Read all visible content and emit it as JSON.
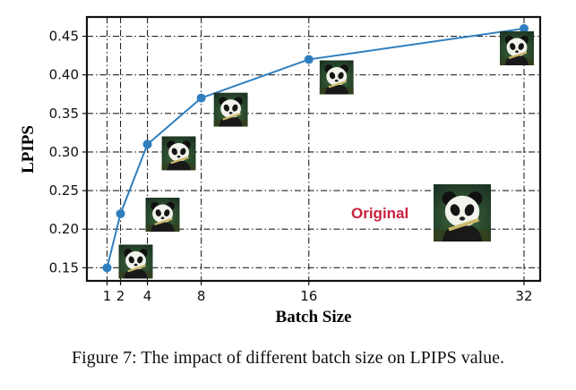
{
  "chart_data": {
    "type": "line",
    "xlabel": "Batch Size",
    "ylabel": "LPIPS",
    "x": [
      1,
      2,
      4,
      8,
      16,
      32
    ],
    "series": [
      {
        "values": [
          0.15,
          0.22,
          0.31,
          0.37,
          0.42,
          0.46
        ]
      }
    ],
    "x_ticks": [
      "1",
      "2",
      "4",
      "8",
      "16",
      "32"
    ],
    "y_ticks": [
      "0.15",
      "0.20",
      "0.25",
      "0.30",
      "0.35",
      "0.40",
      "0.45"
    ],
    "xlim": [
      -0.5,
      33.2
    ],
    "ylim": [
      0.133,
      0.475
    ],
    "grid": true,
    "grid_style": "dash-dot",
    "line_color": "#2f7fbf",
    "annotation": {
      "text": "Original",
      "color": "#c8223f"
    },
    "thumbnails": "panda-image"
  },
  "caption": "Figure 7: The impact of different batch size on LPIPS value."
}
